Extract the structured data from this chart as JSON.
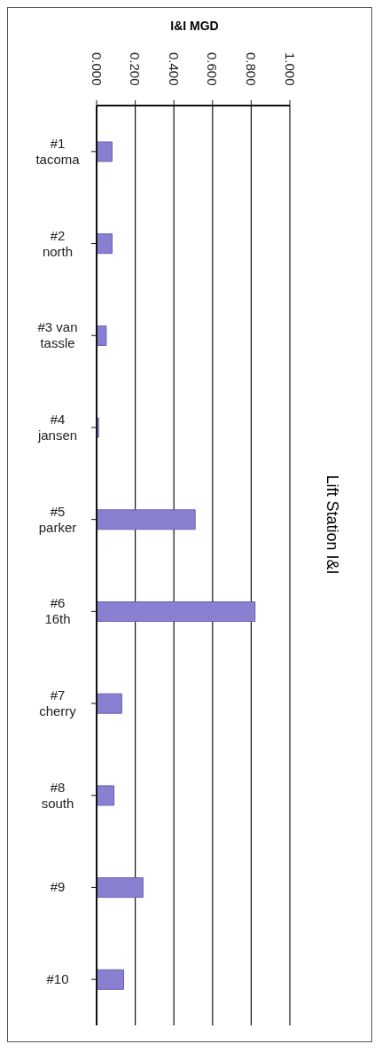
{
  "chart_data": {
    "type": "bar",
    "orientation": "horizontal",
    "title": "Lift Station I&I",
    "xlabel": "I&I MGD",
    "categories": [
      "#1 tacoma",
      "#2 north",
      "#3 van tassle",
      "#4 jansen",
      "#5 parker",
      "#6 16th",
      "#7 cherry",
      "#8 south",
      "#9",
      "#10"
    ],
    "values": [
      0.08,
      0.08,
      0.05,
      0.01,
      0.51,
      0.82,
      0.13,
      0.09,
      0.24,
      0.14
    ],
    "color": "#8a80d2",
    "xlim": [
      0,
      1
    ],
    "xticks": [
      {
        "value": 0,
        "label": "0.000"
      },
      {
        "value": 0.2,
        "label": "0.200"
      },
      {
        "value": 0.4,
        "label": "0.400"
      },
      {
        "value": 0.6,
        "label": "0.600"
      },
      {
        "value": 0.8,
        "label": "0.800"
      },
      {
        "value": 1,
        "label": "1.000"
      }
    ],
    "grid": "x"
  }
}
